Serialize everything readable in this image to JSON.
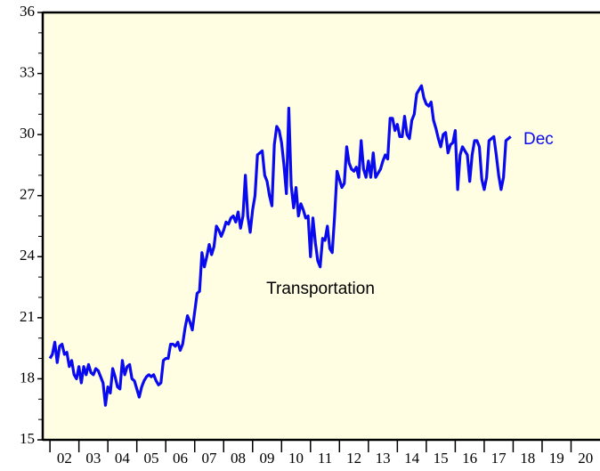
{
  "chart_data": {
    "type": "line",
    "annotation": "Transportation",
    "end_label": "Dec",
    "color": "#0a0af0",
    "xlim": [
      2001.75,
      2021
    ],
    "ylim": [
      15,
      36
    ],
    "yticks": [
      15,
      18,
      21,
      24,
      27,
      30,
      33,
      36
    ],
    "yminor": [
      16,
      17,
      19,
      20,
      22,
      23,
      25,
      26,
      28,
      29,
      31,
      32,
      34,
      35
    ],
    "xticks": [
      2002,
      2003,
      2004,
      2005,
      2006,
      2007,
      2008,
      2009,
      2010,
      2011,
      2012,
      2013,
      2014,
      2015,
      2016,
      2017,
      2018,
      2019,
      2020
    ],
    "xlabels": [
      {
        "value": 2002.5,
        "label": "02"
      },
      {
        "value": 2003.5,
        "label": "03"
      },
      {
        "value": 2004.5,
        "label": "04"
      },
      {
        "value": 2005.5,
        "label": "05"
      },
      {
        "value": 2006.5,
        "label": "06"
      },
      {
        "value": 2007.5,
        "label": "07"
      },
      {
        "value": 2008.5,
        "label": "08"
      },
      {
        "value": 2009.5,
        "label": "09"
      },
      {
        "value": 2010.5,
        "label": "10"
      },
      {
        "value": 2011.5,
        "label": "11"
      },
      {
        "value": 2012.5,
        "label": "12"
      },
      {
        "value": 2013.5,
        "label": "13"
      },
      {
        "value": 2014.5,
        "label": "14"
      },
      {
        "value": 2015.5,
        "label": "15"
      },
      {
        "value": 2016.5,
        "label": "16"
      },
      {
        "value": 2017.5,
        "label": "17"
      },
      {
        "value": 2018.5,
        "label": "18"
      },
      {
        "value": 2019.5,
        "label": "19"
      },
      {
        "value": 2020.5,
        "label": "20"
      }
    ],
    "x": [
      2002.0,
      2002.083,
      2002.167,
      2002.25,
      2002.333,
      2002.417,
      2002.5,
      2002.583,
      2002.667,
      2002.75,
      2002.833,
      2002.917,
      2003.0,
      2003.083,
      2003.167,
      2003.25,
      2003.333,
      2003.417,
      2003.5,
      2003.583,
      2003.667,
      2003.75,
      2003.833,
      2003.917,
      2004.0,
      2004.083,
      2004.167,
      2004.25,
      2004.333,
      2004.417,
      2004.5,
      2004.583,
      2004.667,
      2004.75,
      2004.833,
      2004.917,
      2005.0,
      2005.083,
      2005.167,
      2005.25,
      2005.333,
      2005.417,
      2005.5,
      2005.583,
      2005.667,
      2005.75,
      2005.833,
      2005.917,
      2006.0,
      2006.083,
      2006.167,
      2006.25,
      2006.333,
      2006.417,
      2006.5,
      2006.583,
      2006.667,
      2006.75,
      2006.833,
      2006.917,
      2007.0,
      2007.083,
      2007.167,
      2007.25,
      2007.333,
      2007.417,
      2007.5,
      2007.583,
      2007.667,
      2007.75,
      2007.833,
      2007.917,
      2008.0,
      2008.083,
      2008.167,
      2008.25,
      2008.333,
      2008.417,
      2008.5,
      2008.583,
      2008.667,
      2008.75,
      2008.833,
      2008.917,
      2009.0,
      2009.083,
      2009.167,
      2009.25,
      2009.333,
      2009.417,
      2009.5,
      2009.583,
      2009.667,
      2009.75,
      2009.833,
      2009.917,
      2010.0,
      2010.083,
      2010.167,
      2010.25,
      2010.333,
      2010.417,
      2010.5,
      2010.583,
      2010.667,
      2010.75,
      2010.833,
      2010.917,
      2011.0,
      2011.083,
      2011.167,
      2011.25,
      2011.333,
      2011.417,
      2011.5,
      2011.583,
      2011.667,
      2011.75,
      2011.833,
      2011.917,
      2012.0,
      2012.083,
      2012.167,
      2012.25,
      2012.333,
      2012.417,
      2012.5,
      2012.583,
      2012.667,
      2012.75,
      2012.833,
      2012.917,
      2013.0,
      2013.083,
      2013.167,
      2013.25,
      2013.333,
      2013.417,
      2013.5,
      2013.583,
      2013.667,
      2013.75,
      2013.833,
      2013.917,
      2014.0,
      2014.083,
      2014.167,
      2014.25,
      2014.333,
      2014.417,
      2014.5,
      2014.583,
      2014.667,
      2014.75,
      2014.833,
      2014.917,
      2015.0,
      2015.083,
      2015.167,
      2015.25,
      2015.333,
      2015.417,
      2015.5,
      2015.583,
      2015.667,
      2015.75,
      2015.833,
      2015.917,
      2016.0,
      2016.083,
      2016.167,
      2016.25,
      2016.333,
      2016.417,
      2016.5,
      2016.583,
      2016.667,
      2016.75,
      2016.833,
      2016.917,
      2017.0,
      2017.083,
      2017.167,
      2017.25,
      2017.333,
      2017.417,
      2017.5,
      2017.583,
      2017.667,
      2017.75,
      2017.833,
      2017.917
    ],
    "values": [
      19.0,
      19.2,
      19.8,
      18.8,
      19.6,
      19.7,
      19.2,
      19.3,
      18.6,
      18.9,
      18.2,
      18.0,
      18.6,
      17.8,
      18.6,
      18.2,
      18.7,
      18.3,
      18.2,
      18.5,
      18.4,
      18.1,
      17.8,
      16.7,
      17.6,
      17.3,
      18.5,
      18.1,
      17.6,
      17.5,
      18.9,
      18.2,
      18.6,
      18.7,
      18.0,
      17.9,
      17.5,
      17.1,
      17.6,
      17.9,
      18.1,
      18.2,
      18.1,
      18.2,
      17.9,
      17.7,
      17.8,
      18.9,
      19.0,
      19.0,
      19.7,
      19.7,
      19.6,
      19.8,
      19.4,
      19.7,
      20.5,
      21.1,
      20.8,
      20.4,
      21.3,
      22.2,
      22.3,
      24.2,
      23.5,
      24.0,
      24.6,
      24.1,
      24.5,
      25.5,
      25.3,
      25.0,
      25.3,
      25.7,
      25.6,
      25.9,
      26.0,
      25.7,
      26.2,
      25.4,
      26.0,
      28.0,
      26.0,
      25.2,
      26.3,
      27.0,
      29.0,
      29.1,
      29.2,
      28.0,
      27.7,
      27.0,
      26.5,
      29.5,
      30.4,
      30.2,
      29.6,
      28.5,
      27.1,
      31.3,
      27.5,
      26.4,
      27.4,
      26.0,
      26.6,
      26.3,
      25.9,
      26.0,
      24.0,
      25.9,
      24.7,
      23.8,
      23.5,
      24.9,
      24.8,
      25.5,
      24.4,
      24.2,
      26.0,
      28.2,
      27.8,
      27.4,
      27.6,
      29.4,
      28.6,
      28.3,
      28.2,
      28.4,
      27.9,
      29.7,
      28.3,
      27.9,
      28.7,
      27.9,
      29.1,
      27.9,
      28.1,
      28.3,
      28.7,
      29.0,
      28.8,
      30.8,
      30.8,
      30.2,
      30.5,
      29.9,
      29.9,
      30.9,
      30.0,
      29.8,
      30.7,
      31.0,
      32.0,
      32.2,
      32.4,
      31.8,
      31.5,
      31.4,
      31.6,
      30.7,
      30.3,
      29.8,
      29.4,
      30.0,
      30.1,
      29.1,
      29.5,
      29.6,
      30.2,
      27.3,
      29.0,
      29.4,
      29.2,
      29.0,
      27.7,
      29.0,
      29.7,
      29.7,
      29.4,
      27.8,
      27.3,
      27.9,
      29.7,
      29.8,
      29.9,
      29.0,
      28.0,
      27.3,
      27.9,
      29.7,
      29.8,
      29.9
    ]
  }
}
